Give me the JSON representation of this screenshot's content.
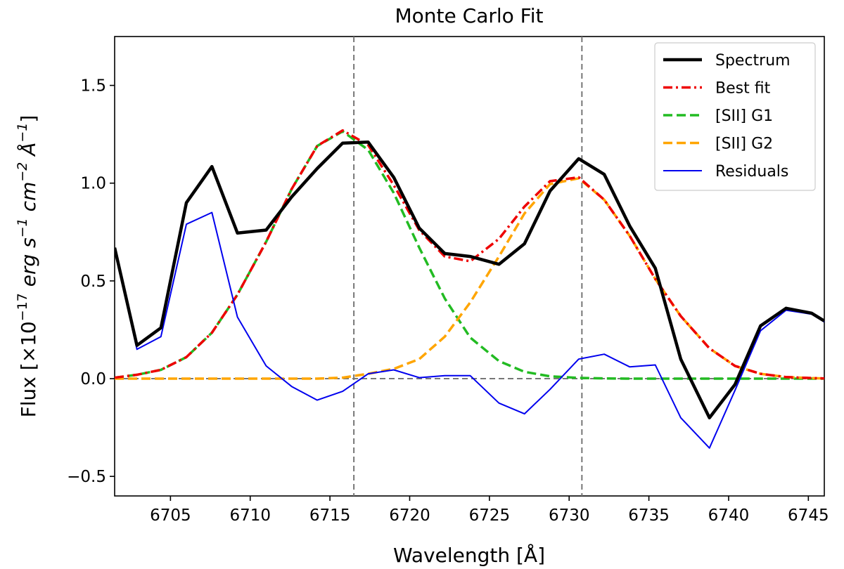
{
  "chart_data": {
    "type": "line",
    "title": "Monte Carlo Fit",
    "xlabel": "Wavelength [Å]",
    "ylabel": {
      "prefix": "Flux [×10",
      "exp": "−17",
      "erg": "erg s",
      "s_exp": "−1",
      "cm": "cm",
      "cm_exp": "−2",
      "ang": "Å",
      "ang_exp": "−1",
      "close": "]"
    },
    "xlim": [
      6701.5,
      6746
    ],
    "ylim": [
      -0.6,
      1.75
    ],
    "xticks": [
      6705,
      6710,
      6715,
      6720,
      6725,
      6730,
      6735,
      6740,
      6745
    ],
    "xtick_labels": [
      "6705",
      "6710",
      "6715",
      "6720",
      "6725",
      "6730",
      "6735",
      "6740",
      "6745"
    ],
    "yticks": [
      -0.5,
      0.0,
      0.5,
      1.0,
      1.5
    ],
    "ytick_labels": [
      "−0.5",
      "0.0",
      "0.5",
      "1.0",
      "1.5"
    ],
    "vlines": [
      6716.5,
      6730.8
    ],
    "hline": 0.0,
    "legend_position": "top-right",
    "series": [
      {
        "name": "Spectrum",
        "color": "#000000",
        "style": "solid",
        "width": 4.5,
        "x": [
          6701.5,
          6702.9,
          6704.4,
          6706.0,
          6707.6,
          6709.2,
          6711.0,
          6712.6,
          6714.2,
          6715.8,
          6717.4,
          6719.0,
          6720.6,
          6722.2,
          6723.8,
          6725.6,
          6727.2,
          6728.8,
          6730.6,
          6732.2,
          6733.8,
          6735.4,
          6737.0,
          6738.8,
          6740.4,
          6742.0,
          6743.6,
          6745.2,
          6746.0
        ],
        "y": [
          0.67,
          0.17,
          0.26,
          0.9,
          1.085,
          0.745,
          0.76,
          0.93,
          1.075,
          1.205,
          1.21,
          1.03,
          0.77,
          0.64,
          0.625,
          0.585,
          0.69,
          0.96,
          1.125,
          1.045,
          0.78,
          0.565,
          0.1,
          -0.2,
          -0.03,
          0.27,
          0.36,
          0.335,
          0.295
        ]
      },
      {
        "name": "Best fit",
        "color": "#ee0000",
        "style": "dashdot",
        "width": 3.5,
        "x": [
          6701.5,
          6702.9,
          6704.4,
          6706.0,
          6707.6,
          6709.2,
          6711.0,
          6712.6,
          6714.2,
          6715.8,
          6717.4,
          6719.0,
          6720.6,
          6722.2,
          6723.8,
          6725.6,
          6727.2,
          6728.8,
          6730.6,
          6732.2,
          6733.8,
          6735.4,
          6737.0,
          6738.8,
          6740.4,
          6742.0,
          6743.6,
          6745.2,
          6746.0
        ],
        "y": [
          0.005,
          0.02,
          0.045,
          0.11,
          0.235,
          0.43,
          0.7,
          0.97,
          1.19,
          1.27,
          1.195,
          0.99,
          0.76,
          0.625,
          0.6,
          0.715,
          0.88,
          1.01,
          1.03,
          0.915,
          0.73,
          0.51,
          0.32,
          0.155,
          0.065,
          0.025,
          0.008,
          0.003,
          0.001
        ]
      },
      {
        "name": "[SII] G1",
        "color": "#22bb22",
        "style": "dashed",
        "width": 3.5,
        "x": [
          6701.5,
          6702.9,
          6704.4,
          6706.0,
          6707.6,
          6709.2,
          6711.0,
          6712.6,
          6714.2,
          6715.8,
          6717.4,
          6719.0,
          6720.6,
          6722.2,
          6723.8,
          6725.6,
          6727.2,
          6728.8,
          6730.6,
          6732.2,
          6733.8,
          6735.4,
          6737.0,
          6738.8,
          6740.4,
          6742.0,
          6743.6,
          6745.2,
          6746.0
        ],
        "y": [
          0.005,
          0.02,
          0.045,
          0.11,
          0.235,
          0.43,
          0.7,
          0.97,
          1.19,
          1.265,
          1.17,
          0.95,
          0.67,
          0.41,
          0.21,
          0.09,
          0.035,
          0.012,
          0.004,
          0.001,
          0.0,
          0.0,
          0.0,
          0.0,
          0.0,
          0.0,
          0.0,
          0.0,
          0.0
        ]
      },
      {
        "name": "[SII] G2",
        "color": "#ffa500",
        "style": "dashed",
        "width": 3.5,
        "x": [
          6701.5,
          6702.9,
          6704.4,
          6706.0,
          6707.6,
          6709.2,
          6711.0,
          6712.6,
          6714.2,
          6715.8,
          6717.4,
          6719.0,
          6720.6,
          6722.2,
          6723.8,
          6725.6,
          6727.2,
          6728.8,
          6730.6,
          6732.2,
          6733.8,
          6735.4,
          6737.0,
          6738.8,
          6740.4,
          6742.0,
          6743.6,
          6745.2,
          6746.0
        ],
        "y": [
          0.0,
          0.0,
          0.0,
          0.0,
          0.0,
          0.0,
          0.0,
          0.0,
          0.0,
          0.005,
          0.025,
          0.05,
          0.1,
          0.215,
          0.39,
          0.625,
          0.845,
          0.995,
          1.025,
          0.915,
          0.73,
          0.51,
          0.32,
          0.155,
          0.065,
          0.025,
          0.008,
          0.003,
          0.001
        ]
      },
      {
        "name": "Residuals",
        "color": "#0000ee",
        "style": "solid",
        "width": 2,
        "x": [
          6701.5,
          6702.9,
          6704.4,
          6706.0,
          6707.6,
          6709.2,
          6711.0,
          6712.6,
          6714.2,
          6715.8,
          6717.4,
          6719.0,
          6720.6,
          6722.2,
          6723.8,
          6725.6,
          6727.2,
          6728.8,
          6730.6,
          6732.2,
          6733.8,
          6735.4,
          6737.0,
          6738.8,
          6740.4,
          6742.0,
          6743.6,
          6745.2,
          6746.0
        ],
        "y": [
          0.665,
          0.15,
          0.215,
          0.79,
          0.85,
          0.315,
          0.065,
          -0.04,
          -0.11,
          -0.065,
          0.025,
          0.045,
          0.005,
          0.015,
          0.015,
          -0.125,
          -0.18,
          -0.055,
          0.1,
          0.125,
          0.06,
          0.07,
          -0.2,
          -0.355,
          -0.06,
          0.245,
          0.35,
          0.33,
          0.29
        ]
      }
    ]
  }
}
